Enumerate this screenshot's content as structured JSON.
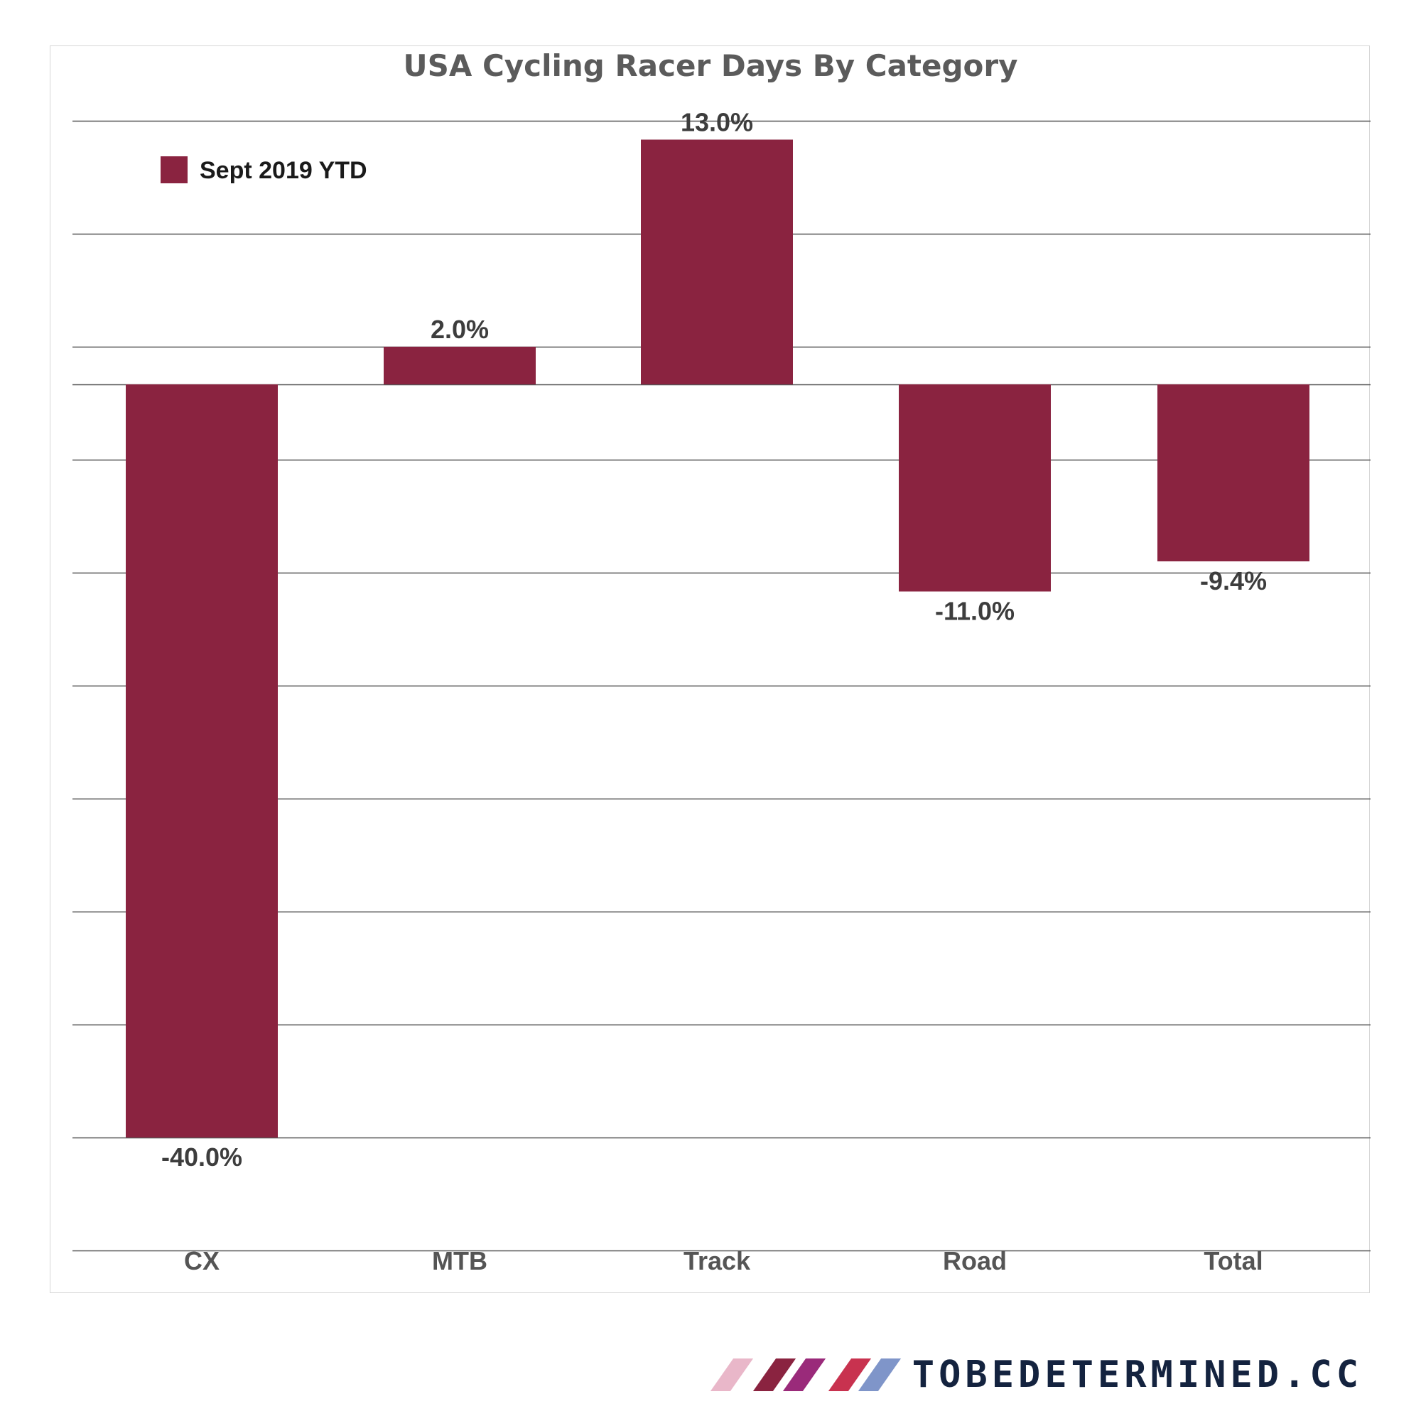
{
  "chart_data": {
    "type": "bar",
    "title": "USA Cycling Racer Days By Category",
    "categories": [
      "CX",
      "MTB",
      "Track",
      "Road",
      "Total"
    ],
    "series": [
      {
        "name": "Sept 2019 YTD",
        "values": [
          -40.0,
          2.0,
          13.0,
          -11.0,
          -9.4
        ],
        "color": "#8a2340"
      }
    ],
    "data_labels": [
      "-40.0%",
      "2.0%",
      "13.0%",
      "-11.0%",
      "-9.4%"
    ],
    "ylim": [
      -45,
      14
    ],
    "gridlines": [
      14,
      8,
      2,
      -4,
      -10,
      -16,
      -22,
      -28,
      -34,
      -40,
      -46
    ],
    "grid": true,
    "legend_position": "top-left",
    "xlabel": "",
    "ylabel": ""
  },
  "brand": {
    "text": "TOBEDETERMINED.CC",
    "slash_colors": [
      "#e9b7c9",
      "#8a2340",
      "#9a2a7a",
      "#c8324f",
      "#7f95c9"
    ]
  }
}
